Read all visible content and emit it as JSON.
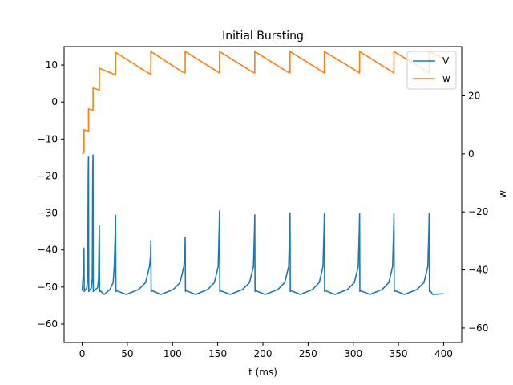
{
  "chart_data": {
    "type": "line",
    "title": "Initial Bursting",
    "xlabel": "t (ms)",
    "ylabel": "",
    "y2label": "w",
    "xlim": [
      -20,
      420
    ],
    "ylim": [
      -65,
      15
    ],
    "y2lim": [
      -65,
      37
    ],
    "xticks": [
      0,
      50,
      100,
      150,
      200,
      250,
      300,
      350,
      400
    ],
    "yticks": [
      -60,
      -50,
      -40,
      -30,
      -20,
      -10,
      0,
      10
    ],
    "y2ticks": [
      -60,
      -40,
      -20,
      0,
      20
    ],
    "grid": false,
    "legend": "top-right",
    "colors": {
      "V": "#1f77b4",
      "w": "#ff7f0e"
    },
    "series": [
      {
        "name": "V",
        "axis": "left",
        "resting": -51,
        "min_after_spike": -52,
        "spike_times": [
          2,
          7,
          12,
          19,
          37,
          76,
          114,
          152,
          191,
          230,
          268,
          307,
          345,
          384
        ],
        "spike_peaks": [
          -39.5,
          -14.8,
          -14.3,
          -33.5,
          -30.6,
          -37.5,
          -36.6,
          -29.4,
          -30.5,
          -30.0,
          -30.2,
          -30.2,
          -30.3,
          -30.2
        ],
        "end_time": 400,
        "end_value": -51.8
      },
      {
        "name": "w",
        "axis": "right",
        "x": [
          0,
          2,
          2,
          5,
          7,
          7,
          10,
          12,
          12,
          17,
          19,
          19,
          34,
          37,
          37,
          73,
          76,
          76,
          111,
          114,
          114,
          150,
          152,
          152,
          188,
          191,
          191,
          227,
          230,
          230,
          266,
          268,
          268,
          305,
          307,
          307,
          343,
          345,
          345,
          382,
          384,
          384,
          400
        ],
        "values": [
          0,
          0.5,
          8.3,
          8.0,
          7.8,
          15.5,
          15.2,
          15.0,
          22.7,
          22.2,
          21.8,
          29.5,
          27.6,
          27.3,
          35.0,
          27.9,
          27.5,
          35.3,
          28.2,
          27.9,
          35.3,
          28.3,
          27.9,
          35.3,
          28.3,
          27.9,
          35.3,
          28.3,
          27.9,
          35.3,
          28.3,
          27.9,
          35.3,
          28.3,
          27.9,
          35.3,
          28.3,
          27.9,
          35.3,
          28.3,
          27.9,
          35.3,
          32.8
        ]
      }
    ]
  }
}
